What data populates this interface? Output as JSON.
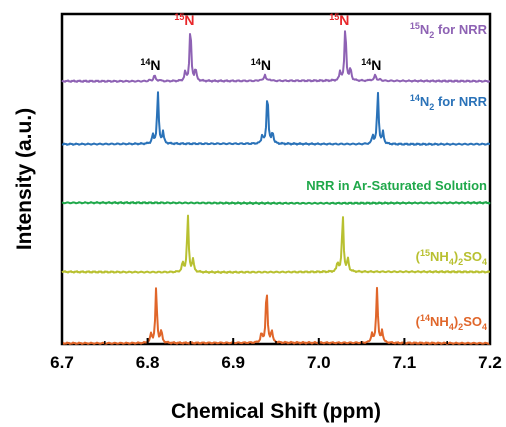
{
  "chart_data": {
    "type": "line",
    "title": "",
    "xlabel": "Chemical Shift (ppm)",
    "ylabel": "Intensity (a.u.)",
    "xlim": [
      6.7,
      7.2
    ],
    "x_ticks": [
      "6.7",
      "6.8",
      "6.9",
      "7.0",
      "7.1",
      "7.2"
    ],
    "y_ticks_shown": false,
    "grid": false,
    "legend": "labels placed beside each trace, right side",
    "series": [
      {
        "name": "15N2 for NRR",
        "color": "#8e62b4",
        "peaks": [
          {
            "x": 6.808,
            "height": 0.12
          },
          {
            "x": 6.85,
            "height": 1.0
          },
          {
            "x": 6.937,
            "height": 0.12
          },
          {
            "x": 7.031,
            "height": 1.0
          },
          {
            "x": 7.066,
            "height": 0.12
          }
        ]
      },
      {
        "name": "14N2 for NRR",
        "color": "#2a72b8",
        "peaks": [
          {
            "x": 6.812,
            "height": 1.0
          },
          {
            "x": 6.94,
            "height": 1.0
          },
          {
            "x": 7.069,
            "height": 1.0
          }
        ]
      },
      {
        "name": "NRR in Ar-Saturated Solution",
        "color": "#1fa84a",
        "peaks": []
      },
      {
        "name": "(15NH4)2SO4",
        "color": "#b8c030",
        "peaks": [
          {
            "x": 6.847,
            "height": 1.0
          },
          {
            "x": 7.028,
            "height": 1.0
          }
        ]
      },
      {
        "name": "(14NH4)2SO4",
        "color": "#e0662a",
        "peaks": [
          {
            "x": 6.81,
            "height": 1.0
          },
          {
            "x": 6.939,
            "height": 1.0
          },
          {
            "x": 7.068,
            "height": 1.0
          }
        ]
      }
    ],
    "annotations": [
      {
        "sup": "14",
        "text": "N",
        "color": "#000000",
        "x": 6.808
      },
      {
        "sup": "15",
        "text": "N",
        "color": "#e8262a",
        "x": 6.85
      },
      {
        "sup": "14",
        "text": "N",
        "color": "#000000",
        "x": 6.937
      },
      {
        "sup": "15",
        "text": "N",
        "color": "#e8262a",
        "x": 7.031
      },
      {
        "sup": "14",
        "text": "N",
        "color": "#000000",
        "x": 7.066
      }
    ]
  }
}
